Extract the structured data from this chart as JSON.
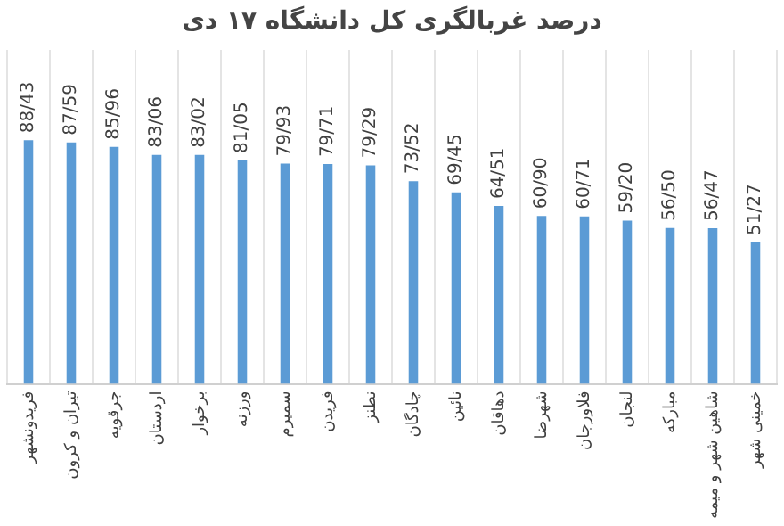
{
  "chart_data": {
    "type": "bar",
    "title": "درصد غربالگری کل دانشگاه ۱۷ دی",
    "categories": [
      "فریدونشهر",
      "تیران و کرون",
      "جرقویه",
      "اردستان",
      "برخوار",
      "ورزنه",
      "سمیرم",
      "فریدن",
      "نطنز",
      "چادگان",
      "نائین",
      "دهاقان",
      "شهرضا",
      "فلاورجان",
      "لنجان",
      "مبارکه",
      "شاهین شهر و میمه",
      "خمینی شهر"
    ],
    "values": [
      88.43,
      87.59,
      85.96,
      83.06,
      83.02,
      81.05,
      79.93,
      79.71,
      79.29,
      73.52,
      69.45,
      64.51,
      60.9,
      60.71,
      59.2,
      56.5,
      56.47,
      51.27
    ],
    "value_labels": [
      "88/43",
      "87/59",
      "85/96",
      "83/06",
      "83/02",
      "81/05",
      "79/93",
      "79/71",
      "79/29",
      "73/52",
      "69/45",
      "64/51",
      "60/90",
      "60/71",
      "59/20",
      "56/50",
      "56/47",
      "51/27"
    ],
    "color": "#5b9bd5",
    "grid": "x"
  }
}
